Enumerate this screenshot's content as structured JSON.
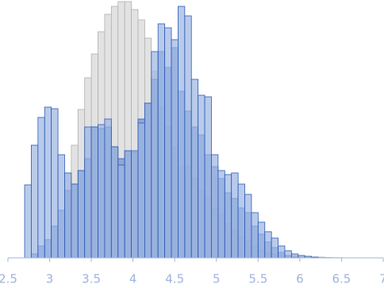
{
  "chart_data": {
    "type": "histogram",
    "bins": [
      2.7,
      2.78,
      2.86,
      2.94,
      3.02,
      3.1,
      3.18,
      3.26,
      3.34,
      3.42,
      3.5,
      3.58,
      3.66,
      3.74,
      3.82,
      3.9,
      3.98,
      4.06,
      4.14,
      4.22,
      4.3,
      4.38,
      4.46,
      4.54,
      4.62,
      4.7,
      4.78,
      4.86,
      4.94,
      5.02,
      5.1,
      5.18,
      5.26,
      5.34,
      5.42,
      5.5,
      5.58,
      5.66,
      5.74,
      5.82,
      5.9,
      5.98,
      6.06,
      6.14,
      6.22,
      6.3,
      6.38,
      6.46,
      6.54,
      6.62
    ],
    "series": [
      {
        "color": "#e2e2e2",
        "values": [
          0,
          0,
          0,
          0,
          0,
          0,
          107,
          142,
          187,
          227,
          257,
          285,
          307,
          317,
          323,
          323,
          313,
          300,
          277,
          235,
          190,
          165,
          140,
          115,
          115,
          100,
          85,
          75,
          63,
          55,
          43,
          35,
          27,
          22,
          15,
          10,
          7,
          5,
          4,
          3,
          3,
          2,
          1.5,
          1,
          1,
          0.5,
          0.3,
          0.2,
          0
        ]
      },
      {
        "color": "#6f90cf",
        "values": [
          0,
          5,
          15,
          23,
          40,
          60,
          85,
          93,
          110,
          125,
          165,
          163,
          165,
          140,
          125,
          135,
          133,
          175,
          195,
          225,
          260,
          240,
          265,
          210,
          185,
          165,
          155,
          130,
          115,
          100,
          82,
          75,
          63,
          57,
          40,
          30,
          20,
          13,
          7,
          3,
          1,
          0,
          0,
          0,
          0,
          0,
          0,
          0,
          0
        ]
      },
      {
        "color": "#9bb5e3",
        "values": [
          92,
          142,
          177,
          190,
          188,
          130,
          107,
          93,
          110,
          165,
          165,
          168,
          175,
          140,
          117,
          135,
          135,
          170,
          195,
          260,
          295,
          290,
          275,
          317,
          305,
          225,
          205,
          203,
          130,
          110,
          105,
          107,
          93,
          80,
          57,
          45,
          33,
          25,
          15,
          9,
          5,
          3,
          2,
          1,
          0,
          0,
          0,
          0,
          0
        ]
      }
    ],
    "xlim": [
      2.5,
      7
    ],
    "xticks": [
      2.5,
      3,
      3.5,
      4,
      4.5,
      5,
      5.5,
      6,
      6.5,
      7
    ],
    "ylim": [
      0,
      325
    ]
  }
}
